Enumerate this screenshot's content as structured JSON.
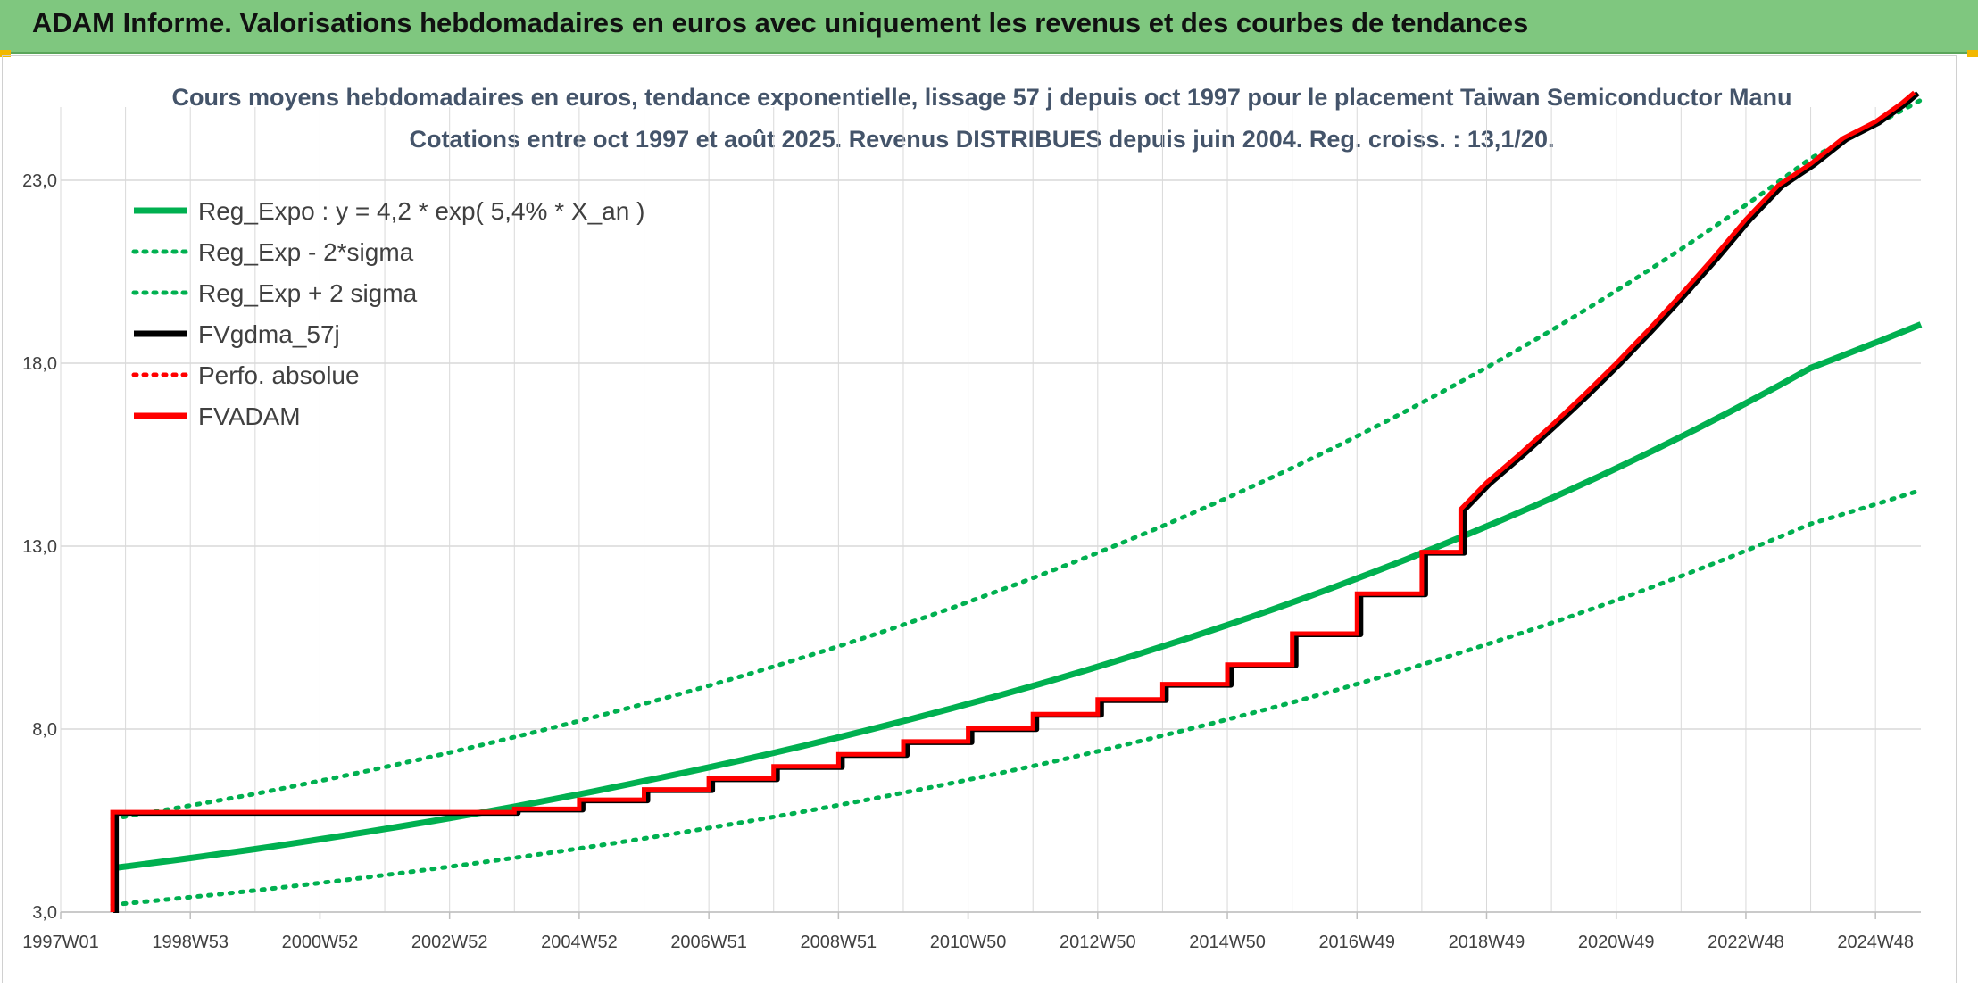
{
  "banner": {
    "title": "ADAM Informe. Valorisations hebdomadaires en euros avec uniquement les revenus et des courbes de tendances"
  },
  "colors": {
    "banner": "#7fc77f",
    "trend": "#00b050",
    "fvgdma": "#000000",
    "fvadam": "#ff0000",
    "grid": "#d9d9d9"
  },
  "chart_data": {
    "type": "line",
    "title": "Cours moyens hebdomadaires en euros, tendance exponentielle, lissage 57 j depuis oct 1997 pour le placement Taiwan Semiconductor Manu",
    "subtitle": "Cotations entre oct 1997 et août 2025. Revenus DISTRIBUES depuis juin 2004. Reg. croiss. : 13,1/20.",
    "xlabel": "",
    "ylabel": "",
    "ylim": [
      3.0,
      25.0
    ],
    "xlim": [
      1997.0,
      2025.7
    ],
    "y_ticks": [
      "3,0",
      "8,0",
      "13,0",
      "18,0",
      "23,0"
    ],
    "x_ticks": [
      "1997W01",
      "1998W53",
      "2000W52",
      "2002W52",
      "2004W52",
      "2006W51",
      "2008W51",
      "2010W50",
      "2012W50",
      "2014W50",
      "2016W49",
      "2018W49",
      "2020W49",
      "2022W48",
      "2024W48"
    ],
    "grid": true,
    "legend_position": "top-left",
    "legend": [
      {
        "label": "Reg_Expo : y = 4,2 * exp( 5,4% *  X_an )",
        "style": "solid",
        "color": "#00b050"
      },
      {
        "label": "Reg_Exp - 2*sigma",
        "style": "dotted",
        "color": "#00b050"
      },
      {
        "label": "Reg_Exp + 2 sigma",
        "style": "dotted",
        "color": "#00b050"
      },
      {
        "label": "FVgdma_57j",
        "style": "solid",
        "color": "#000000"
      },
      {
        "label": "Perfo. absolue",
        "style": "dotted",
        "color": "#ff0000"
      },
      {
        "label": "FVADAM",
        "style": "solid",
        "color": "#ff0000"
      }
    ],
    "series": [
      {
        "name": "Reg_Expo : y = 4,2 * exp( 5,4% *  X_an )",
        "style": "solid",
        "x": [
          1997.8,
          2000.0,
          2002.0,
          2004.0,
          2006.0,
          2008.0,
          2010.0,
          2012.0,
          2014.0,
          2016.0,
          2018.0,
          2020.0,
          2022.0,
          2024.0,
          2025.7
        ],
        "y": [
          4.2,
          4.72,
          5.27,
          5.88,
          6.58,
          7.35,
          8.22,
          9.18,
          10.26,
          11.46,
          12.81,
          14.31,
          15.99,
          17.87,
          19.06
        ]
      },
      {
        "name": "Reg_Exp - 2*sigma",
        "style": "dotted",
        "x": [
          1997.8,
          2000.0,
          2002.0,
          2004.0,
          2006.0,
          2008.0,
          2010.0,
          2012.0,
          2014.0,
          2016.0,
          2018.0,
          2020.0,
          2022.0,
          2024.0,
          2025.7
        ],
        "y": [
          3.2,
          3.59,
          4.01,
          4.48,
          5.01,
          5.6,
          6.26,
          6.99,
          7.82,
          8.73,
          9.76,
          10.9,
          12.18,
          13.61,
          14.53
        ]
      },
      {
        "name": "Reg_Exp + 2 sigma",
        "style": "dotted",
        "x": [
          1997.8,
          2000.0,
          2002.0,
          2004.0,
          2006.0,
          2008.0,
          2010.0,
          2012.0,
          2014.0,
          2016.0,
          2018.0,
          2020.0,
          2022.0,
          2024.0,
          2025.7
        ],
        "y": [
          5.55,
          6.23,
          6.96,
          7.78,
          8.69,
          9.71,
          10.85,
          12.13,
          13.55,
          15.14,
          16.92,
          18.9,
          21.12,
          23.6,
          25.19
        ]
      },
      {
        "name": "FVADAM",
        "style": "solid",
        "x": [
          1997.8,
          1997.8,
          2004.0,
          2004.0,
          2005.0,
          2005.0,
          2006.0,
          2006.0,
          2007.0,
          2007.0,
          2008.0,
          2008.0,
          2009.0,
          2009.0,
          2010.0,
          2010.0,
          2011.0,
          2011.0,
          2012.0,
          2012.0,
          2013.0,
          2013.0,
          2014.0,
          2014.0,
          2015.0,
          2015.0,
          2016.0,
          2016.0,
          2017.0,
          2017.0,
          2018.0,
          2018.0,
          2018.6,
          2018.6,
          2019.0,
          2019.5,
          2020.0,
          2020.5,
          2021.0,
          2021.5,
          2022.0,
          2022.5,
          2023.0,
          2023.5,
          2024.0,
          2024.5,
          2025.0,
          2025.4,
          2025.6
        ],
        "y": [
          3.0,
          5.73,
          5.73,
          5.82,
          5.82,
          6.07,
          6.07,
          6.35,
          6.35,
          6.65,
          6.65,
          6.98,
          6.98,
          7.31,
          7.31,
          7.66,
          7.66,
          8.02,
          8.02,
          8.41,
          8.41,
          8.81,
          8.81,
          9.23,
          9.23,
          9.76,
          9.76,
          10.61,
          10.61,
          11.7,
          11.7,
          12.84,
          12.84,
          14.01,
          14.74,
          15.5,
          16.3,
          17.13,
          18.0,
          18.92,
          19.88,
          20.88,
          21.93,
          22.86,
          23.45,
          24.15,
          24.6,
          25.1,
          25.4
        ]
      }
    ]
  }
}
